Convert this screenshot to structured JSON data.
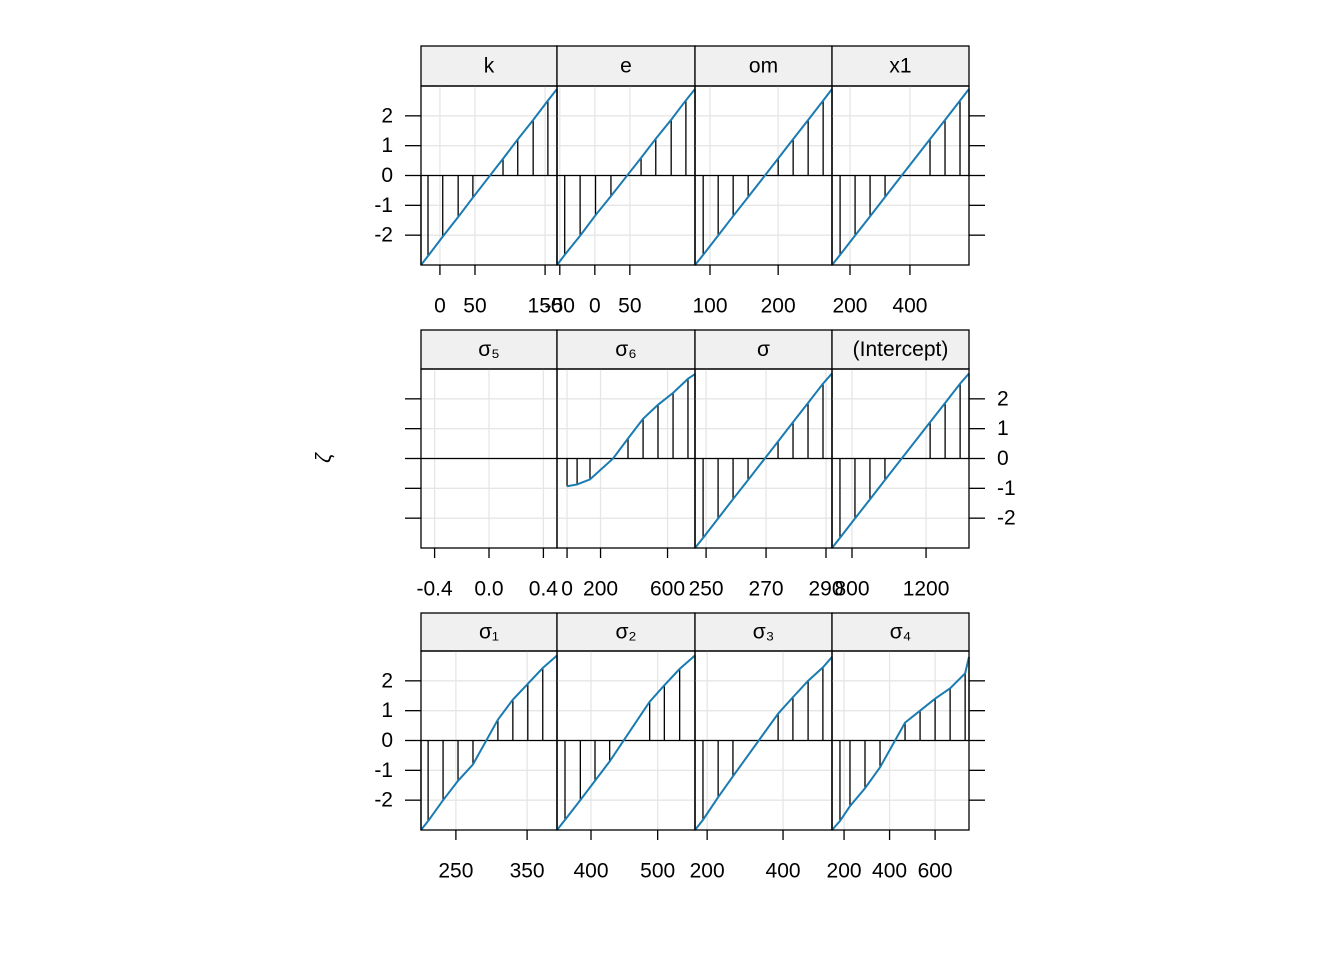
{
  "ylabel": "ζ",
  "chart_data": [
    {
      "type": "line",
      "title": "k",
      "color": "#1a7bb0",
      "grid": true,
      "x": [
        -27,
        -17,
        4,
        26,
        47,
        90,
        111,
        133,
        154,
        167
      ],
      "values": [
        -3,
        -2.7,
        -2.05,
        -1.39,
        -0.74,
        0.56,
        1.21,
        1.86,
        2.51,
        2.9
      ],
      "xlim": [
        -27,
        167
      ],
      "xticks": [
        0,
        50,
        150
      ],
      "ylim": [
        -3,
        3
      ],
      "yticks": [
        -2,
        -1,
        0,
        1,
        2
      ]
    },
    {
      "type": "line",
      "title": "e",
      "color": "#1a7bb0",
      "grid": true,
      "x": [
        -54,
        -43,
        -21,
        1,
        23,
        66,
        87,
        109,
        130,
        143
      ],
      "values": [
        -3,
        -2.66,
        -2.02,
        -1.33,
        -0.69,
        0.59,
        1.23,
        1.87,
        2.52,
        2.9
      ],
      "xlim": [
        -54,
        143
      ],
      "xticks": [
        -50,
        0,
        50
      ],
      "ylim": [
        -3,
        3
      ],
      "yticks": [
        -2,
        -1,
        0,
        1,
        2
      ]
    },
    {
      "type": "line",
      "title": "om",
      "color": "#1a7bb0",
      "grid": true,
      "x": [
        78,
        90,
        112,
        134,
        156,
        200,
        222,
        244,
        266,
        279
      ],
      "values": [
        -3,
        -2.66,
        -2.01,
        -1.36,
        -0.72,
        0.57,
        1.22,
        1.86,
        2.51,
        2.9
      ],
      "xlim": [
        78,
        279
      ],
      "xticks": [
        100,
        200
      ],
      "ylim": [
        -3,
        3
      ],
      "yticks": [
        -2,
        -1,
        0,
        1,
        2
      ]
    },
    {
      "type": "line",
      "title": "x1",
      "color": "#1a7bb0",
      "grid": true,
      "x": [
        140,
        167,
        217,
        267,
        317,
        467,
        517,
        567,
        597
      ],
      "values": [
        -3,
        -2.66,
        -2.01,
        -1.37,
        -0.72,
        1.22,
        1.86,
        2.51,
        2.9
      ],
      "xlim": [
        140,
        597
      ],
      "xticks": [
        200,
        400
      ],
      "ylim": [
        -3,
        3
      ],
      "yticks": [
        -2,
        -1,
        0,
        1,
        2
      ]
    },
    {
      "type": "line",
      "title": "σ₅",
      "color": "#1a7bb0",
      "grid": true,
      "x": [],
      "values": [],
      "xlim": [
        -0.5,
        0.5
      ],
      "xticks": [
        -0.4,
        {
          "value": 0,
          "label": "0.0"
        },
        0.4
      ],
      "ylim": [
        -3,
        3
      ],
      "yticks": [
        -2,
        -1,
        0,
        1,
        2
      ]
    },
    {
      "type": "line",
      "title": "σ₆",
      "color": "#1a7bb0",
      "grid": true,
      "x": [
        0,
        60,
        137,
        275,
        364,
        454,
        543,
        633,
        722,
        764
      ],
      "values": [
        -0.93,
        -0.87,
        -0.7,
        0,
        0.67,
        1.33,
        1.8,
        2.2,
        2.67,
        2.83
      ],
      "xlim": [
        -60,
        764
      ],
      "xticks": [
        0,
        200,
        600
      ],
      "ylim": [
        -3,
        3
      ],
      "yticks": [
        -2,
        -1,
        0,
        1,
        2
      ]
    },
    {
      "type": "line",
      "title": "σ",
      "color": "#1a7bb0",
      "grid": true,
      "x": [
        246.3,
        249,
        254,
        259,
        264,
        274,
        279,
        284,
        289,
        292
      ],
      "values": [
        -3,
        -2.66,
        -2.01,
        -1.36,
        -0.72,
        0.57,
        1.22,
        1.86,
        2.51,
        2.85
      ],
      "xlim": [
        246.3,
        292
      ],
      "xticks": [
        250,
        270,
        290
      ],
      "ylim": [
        -3,
        3
      ],
      "yticks": [
        -2,
        -1,
        0,
        1,
        2
      ]
    },
    {
      "type": "line",
      "title": "(Intercept)",
      "color": "#1a7bb0",
      "grid": true,
      "x": [
        692,
        735,
        816,
        897,
        978,
        1222,
        1303,
        1384,
        1432
      ],
      "values": [
        -3,
        -2.66,
        -2.01,
        -1.37,
        -0.72,
        1.22,
        1.86,
        2.51,
        2.85
      ],
      "xlim": [
        692,
        1432
      ],
      "xticks": [
        800,
        1200
      ],
      "ylim": [
        -3,
        3
      ],
      "yticks": [
        -2,
        -1,
        0,
        1,
        2
      ]
    },
    {
      "type": "line",
      "title": "σ₁",
      "color": "#1a7bb0",
      "grid": true,
      "x": [
        201,
        211,
        232,
        253,
        274,
        309,
        330,
        351,
        372,
        392
      ],
      "values": [
        -3,
        -2.7,
        -2.0,
        -1.35,
        -0.8,
        0.7,
        1.37,
        1.9,
        2.43,
        2.85
      ],
      "xlim": [
        201,
        392
      ],
      "xticks": [
        250,
        350
      ],
      "ylim": [
        -3,
        3
      ],
      "yticks": [
        -2,
        -1,
        0,
        1,
        2
      ]
    },
    {
      "type": "line",
      "title": "σ₂",
      "color": "#1a7bb0",
      "grid": true,
      "x": [
        349,
        361,
        384,
        406,
        428,
        488,
        510,
        533,
        556
      ],
      "values": [
        -3,
        -2.66,
        -2.0,
        -1.35,
        -0.7,
        1.3,
        1.85,
        2.4,
        2.85
      ],
      "xlim": [
        349,
        556
      ],
      "xticks": [
        400,
        500
      ],
      "ylim": [
        -3,
        3
      ],
      "yticks": [
        -2,
        -1,
        0,
        1,
        2
      ]
    },
    {
      "type": "line",
      "title": "σ₃",
      "color": "#1a7bb0",
      "grid": true,
      "x": [
        168,
        189,
        229,
        268,
        387,
        426,
        466,
        505,
        529
      ],
      "values": [
        -3,
        -2.66,
        -1.9,
        -1.2,
        0.9,
        1.45,
        2.0,
        2.45,
        2.8
      ],
      "xlim": [
        168,
        529
      ],
      "xticks": [
        200,
        400
      ],
      "ylim": [
        -3,
        3
      ],
      "yticks": [
        -2,
        -1,
        0,
        1,
        2
      ]
    },
    {
      "type": "line",
      "title": "σ₄",
      "color": "#1a7bb0",
      "grid": true,
      "x": [
        147,
        182,
        226,
        292,
        358,
        468,
        534,
        600,
        666,
        732,
        749
      ],
      "values": [
        -3,
        -2.7,
        -2.2,
        -1.6,
        -0.9,
        0.6,
        1.0,
        1.4,
        1.75,
        2.25,
        2.8
      ],
      "xlim": [
        147,
        749
      ],
      "xticks": [
        200,
        400,
        600
      ],
      "ylim": [
        -3,
        3
      ],
      "yticks": [
        -2,
        -1,
        0,
        1,
        2
      ]
    }
  ]
}
